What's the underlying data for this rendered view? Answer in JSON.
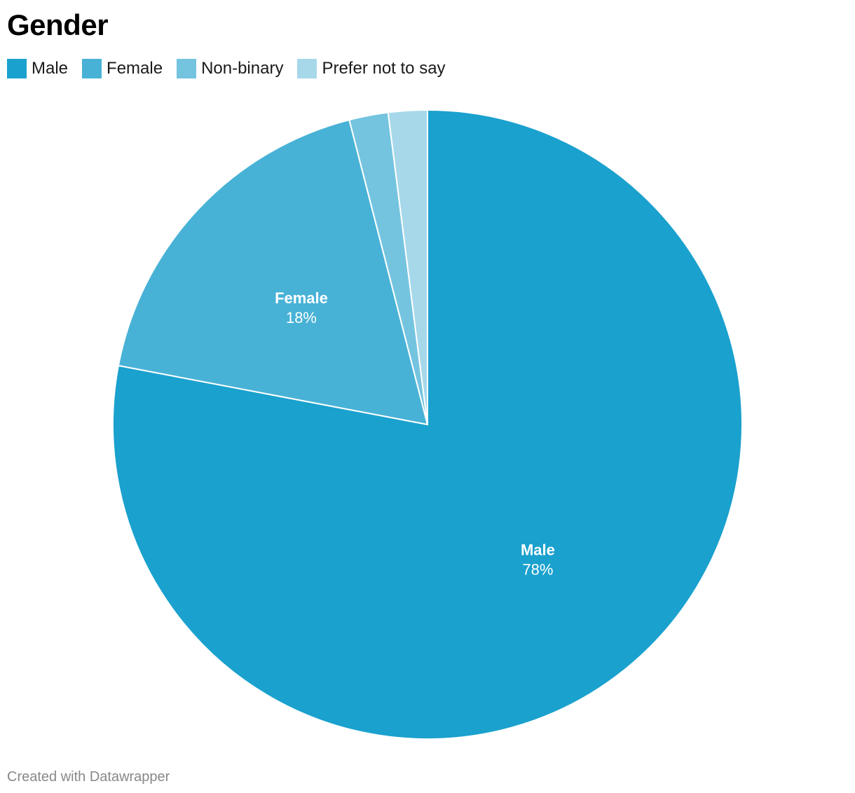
{
  "header": {
    "title": "Gender"
  },
  "legend": {
    "items": [
      {
        "label": "Male",
        "color": "#1aa1ce"
      },
      {
        "label": "Female",
        "color": "#48b2d6"
      },
      {
        "label": "Non-binary",
        "color": "#74c4e0"
      },
      {
        "label": "Prefer not to say",
        "color": "#a6d8ea"
      }
    ]
  },
  "chart_data": {
    "type": "pie",
    "title": "Gender",
    "categories": [
      "Male",
      "Female",
      "Non-binary",
      "Prefer not to say"
    ],
    "values": [
      78,
      18,
      2,
      2
    ],
    "unit": "%",
    "colors": [
      "#1aa1ce",
      "#48b2d6",
      "#74c4e0",
      "#a6d8ea"
    ],
    "data_labels": [
      {
        "name": "Male",
        "value": "78%"
      },
      {
        "name": "Female",
        "value": "18%"
      }
    ],
    "legend_position": "top-left"
  },
  "footer": {
    "credit": "Created with Datawrapper"
  }
}
